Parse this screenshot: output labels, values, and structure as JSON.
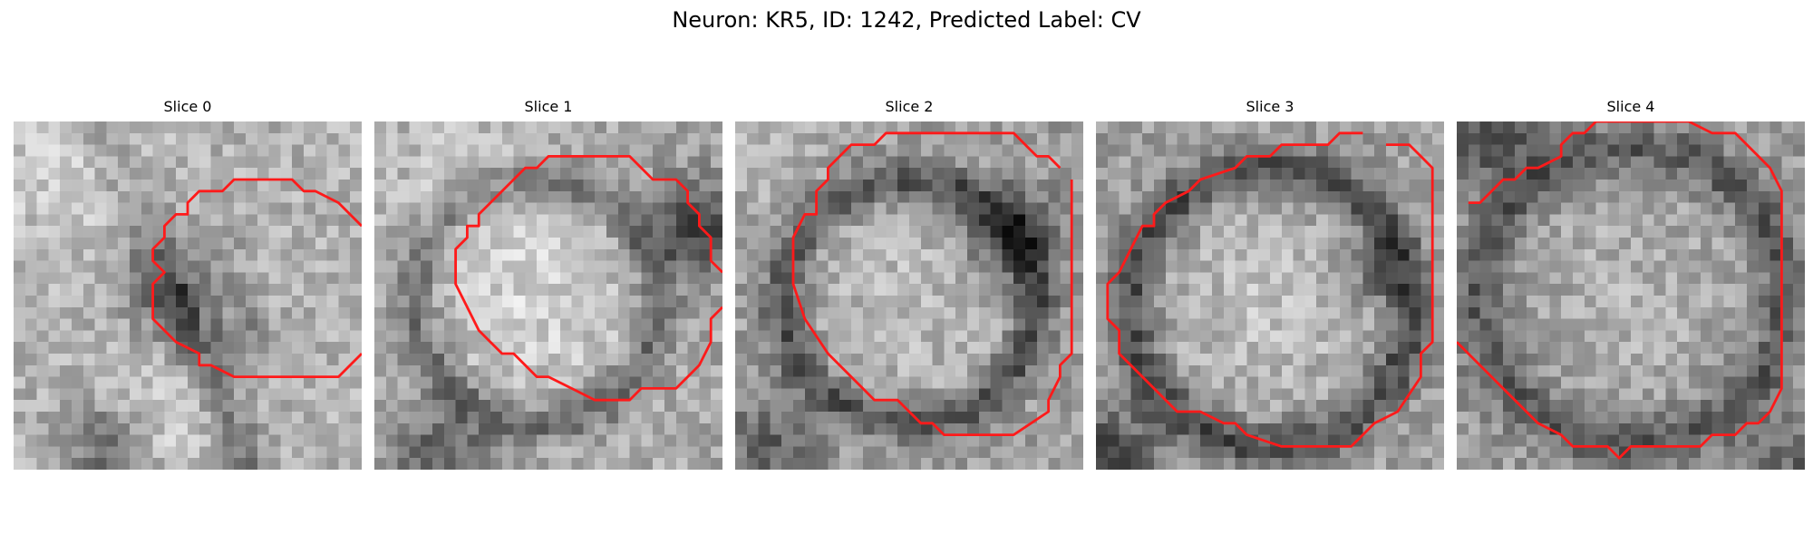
{
  "figure": {
    "title": "Neuron: KR5, ID: 1242, Predicted Label: CV"
  },
  "colors": {
    "contour": "#ff1a1a",
    "background": "#ffffff"
  },
  "panels": [
    {
      "title": "Slice 0"
    },
    {
      "title": "Slice 1"
    },
    {
      "title": "Slice 2"
    },
    {
      "title": "Slice 3"
    },
    {
      "title": "Slice 4"
    }
  ]
}
